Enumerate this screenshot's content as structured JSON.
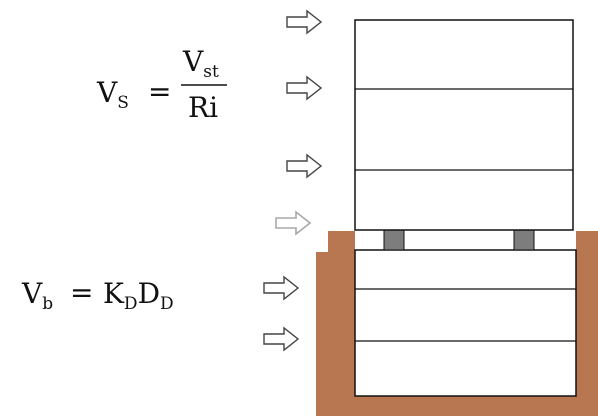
{
  "equations": {
    "vs": {
      "lhs": "V",
      "lhs_sub": "S",
      "equals": "=",
      "num": "V",
      "num_sub": "st",
      "den": "Ri"
    },
    "vb": {
      "lhs": "V",
      "lhs_sub": "b",
      "equals": "=",
      "k": "K",
      "k_sub": "D",
      "d": "D",
      "d_sub": "D"
    }
  },
  "colors": {
    "soil": "#b87750",
    "bearing": "#7d7d7d",
    "arrow_outline": "#444444",
    "arrow_faint": "#a8a8a8",
    "line": "#111111"
  },
  "icons": [
    "arrow-right-icon"
  ]
}
